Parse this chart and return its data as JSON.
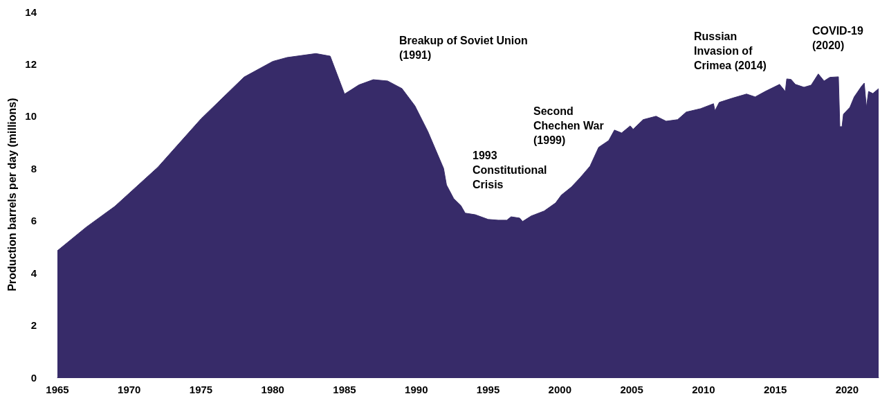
{
  "chart_data": {
    "type": "area",
    "ylabel": "Production barrels per day (millions)",
    "x": [
      1965,
      1967,
      1969,
      1972,
      1975,
      1978,
      1980,
      1981,
      1983,
      1984,
      1985,
      1986,
      1987,
      1988,
      1989,
      1989.9,
      1990.8,
      1991.9,
      1992.1,
      1992.6,
      1993.1,
      1993.4,
      1994.1,
      1995.0,
      1995.7,
      1996.3,
      1996.6,
      1997.2,
      1997.4,
      1998.0,
      1998.9,
      1999.7,
      2000.1,
      2000.8,
      2001.4,
      2002.1,
      2002.7,
      2003.4,
      2003.8,
      2004.3,
      2004.9,
      2005.1,
      2005.8,
      2006.7,
      2007.4,
      2008.2,
      2008.8,
      2009.8,
      2010.7,
      2010.8,
      2011.1,
      2012.0,
      2013.0,
      2013.6,
      2014.3,
      2015.3,
      2015.7,
      2015.8,
      2016.1,
      2016.4,
      2017.0,
      2017.5,
      2018.0,
      2018.4,
      2018.8,
      2019.4,
      2019.5,
      2019.65,
      2019.75,
      2020.2,
      2020.5,
      2021.0,
      2021.2,
      2021.35,
      2021.5,
      2021.8,
      2022.2
    ],
    "series": [
      {
        "color": "#372b69",
        "values": [
          4.85,
          5.75,
          6.55,
          8.05,
          9.9,
          11.5,
          12.1,
          12.25,
          12.4,
          12.3,
          10.85,
          11.2,
          11.4,
          11.35,
          11.06,
          10.4,
          9.42,
          8.0,
          7.37,
          6.85,
          6.58,
          6.29,
          6.23,
          6.05,
          6.02,
          6.02,
          6.15,
          6.1,
          5.97,
          6.18,
          6.37,
          6.68,
          6.98,
          7.29,
          7.64,
          8.09,
          8.81,
          9.07,
          9.47,
          9.36,
          9.63,
          9.5,
          9.87,
          10.0,
          9.81,
          9.87,
          10.16,
          10.29,
          10.48,
          10.21,
          10.53,
          10.69,
          10.85,
          10.74,
          10.95,
          11.22,
          10.95,
          11.43,
          11.41,
          11.22,
          11.11,
          11.19,
          11.62,
          11.35,
          11.49,
          11.51,
          9.6,
          9.6,
          10.08,
          10.34,
          10.74,
          11.14,
          11.27,
          10.34,
          10.95,
          10.87,
          11.06
        ]
      }
    ],
    "xlim": [
      1965,
      2022.2
    ],
    "xticks": [
      1965,
      1970,
      1975,
      1980,
      1985,
      1990,
      1995,
      2000,
      2005,
      2010,
      2015,
      2020
    ],
    "ylim": [
      0,
      14
    ],
    "yticks": [
      0,
      2,
      4,
      6,
      8,
      10,
      12,
      14
    ],
    "grid": false,
    "annotations": [
      "Breakup of Soviet Union\n(1991)",
      "1993\nConstitutional\nCrisis",
      "Second\nChechen War\n(1999)",
      "Russian\nInvasion of\nCrimea (2014)",
      "COVID-19\n(2020)"
    ]
  }
}
